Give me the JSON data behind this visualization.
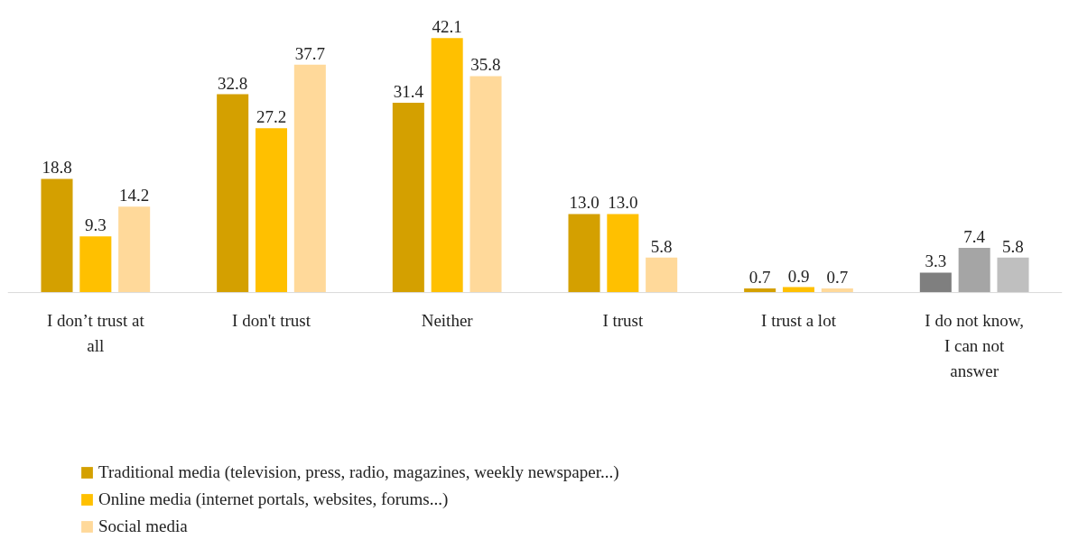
{
  "chart_data": {
    "type": "bar",
    "categories": [
      "I don’t trust at\nall",
      "I don't trust",
      "Neither",
      "I trust",
      "I trust a lot",
      "I do not know,\nI can not\nanswer"
    ],
    "series": [
      {
        "name": "Traditional media (television, press, radio, magazines, weekly newspaper...)",
        "color": "#d4a000",
        "colors": [
          null,
          null,
          null,
          null,
          null,
          "#7f7f7f"
        ],
        "values": [
          18.8,
          32.8,
          31.4,
          13.0,
          0.7,
          3.3
        ],
        "value_labels": [
          "18.8",
          "32.8",
          "31.4",
          "13.0",
          "0.7",
          "3.3"
        ]
      },
      {
        "name": "Online media (internet portals, websites, forums...)",
        "color": "#ffc000",
        "colors": [
          null,
          null,
          null,
          null,
          null,
          "#a5a5a5"
        ],
        "values": [
          9.3,
          27.2,
          42.1,
          13.0,
          0.9,
          7.4
        ],
        "value_labels": [
          "9.3",
          "27.2",
          "42.1",
          "13.0",
          "0.9",
          "7.4"
        ]
      },
      {
        "name": "Social media",
        "color": "#ffd99a",
        "colors": [
          null,
          null,
          null,
          null,
          null,
          "#bfbfbf"
        ],
        "values": [
          14.2,
          37.7,
          35.8,
          5.8,
          0.7,
          5.8
        ],
        "value_labels": [
          "14.2",
          "37.7",
          "35.8",
          "5.8",
          "0.7",
          "5.8"
        ]
      }
    ],
    "legend": "bottom",
    "grid": false,
    "tick_labels": "x"
  }
}
